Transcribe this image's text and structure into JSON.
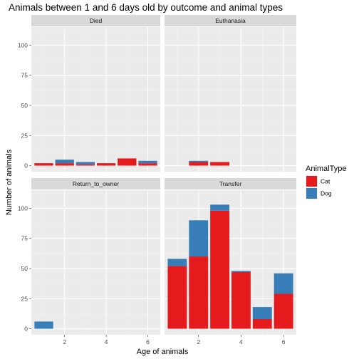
{
  "colors": {
    "cat": "#e41a1c",
    "dog": "#377eb8"
  },
  "chart_data": {
    "type": "bar",
    "stacked": true,
    "faceted": true,
    "title": "Animals between 1 and 6 days old by outcome and animal types",
    "xlabel": "Age of animals",
    "ylabel": "Number of animals",
    "xlim": [
      0.4,
      6.6
    ],
    "ylim": [
      -5,
      115
    ],
    "x_ticks": [
      2,
      4,
      6
    ],
    "y_ticks": [
      0,
      25,
      50,
      75,
      100
    ],
    "grid": true,
    "legend": {
      "title": "AnimalType",
      "position": "right",
      "entries": [
        "Cat",
        "Dog"
      ]
    },
    "facets": [
      {
        "label": "Died",
        "x": [
          1,
          2,
          3,
          4,
          5,
          6
        ],
        "series": [
          {
            "name": "Cat",
            "values": [
              2,
              2,
              1,
              2,
              6,
              2
            ]
          },
          {
            "name": "Dog",
            "values": [
              0,
              3,
              2,
              0,
              0,
              2
            ]
          }
        ]
      },
      {
        "label": "Euthanasia",
        "x": [
          1,
          2,
          3,
          4,
          5,
          6
        ],
        "series": [
          {
            "name": "Cat",
            "values": [
              0,
              3,
              3,
              0,
              0,
              0
            ]
          },
          {
            "name": "Dog",
            "values": [
              0,
              1,
              0,
              0,
              0,
              0
            ]
          }
        ]
      },
      {
        "label": "Return_to_owner",
        "x": [
          1,
          2,
          3,
          4,
          5,
          6
        ],
        "series": [
          {
            "name": "Cat",
            "values": [
              0,
              0,
              0,
              0,
              0,
              0
            ]
          },
          {
            "name": "Dog",
            "values": [
              6,
              0,
              0,
              0,
              0,
              0
            ]
          }
        ]
      },
      {
        "label": "Transfer",
        "x": [
          1,
          2,
          3,
          4,
          5,
          6
        ],
        "series": [
          {
            "name": "Cat",
            "values": [
              52,
              60,
              98,
              47,
              8,
              29
            ]
          },
          {
            "name": "Dog",
            "values": [
              6,
              30,
              5,
              1,
              10,
              17
            ]
          }
        ]
      }
    ]
  }
}
